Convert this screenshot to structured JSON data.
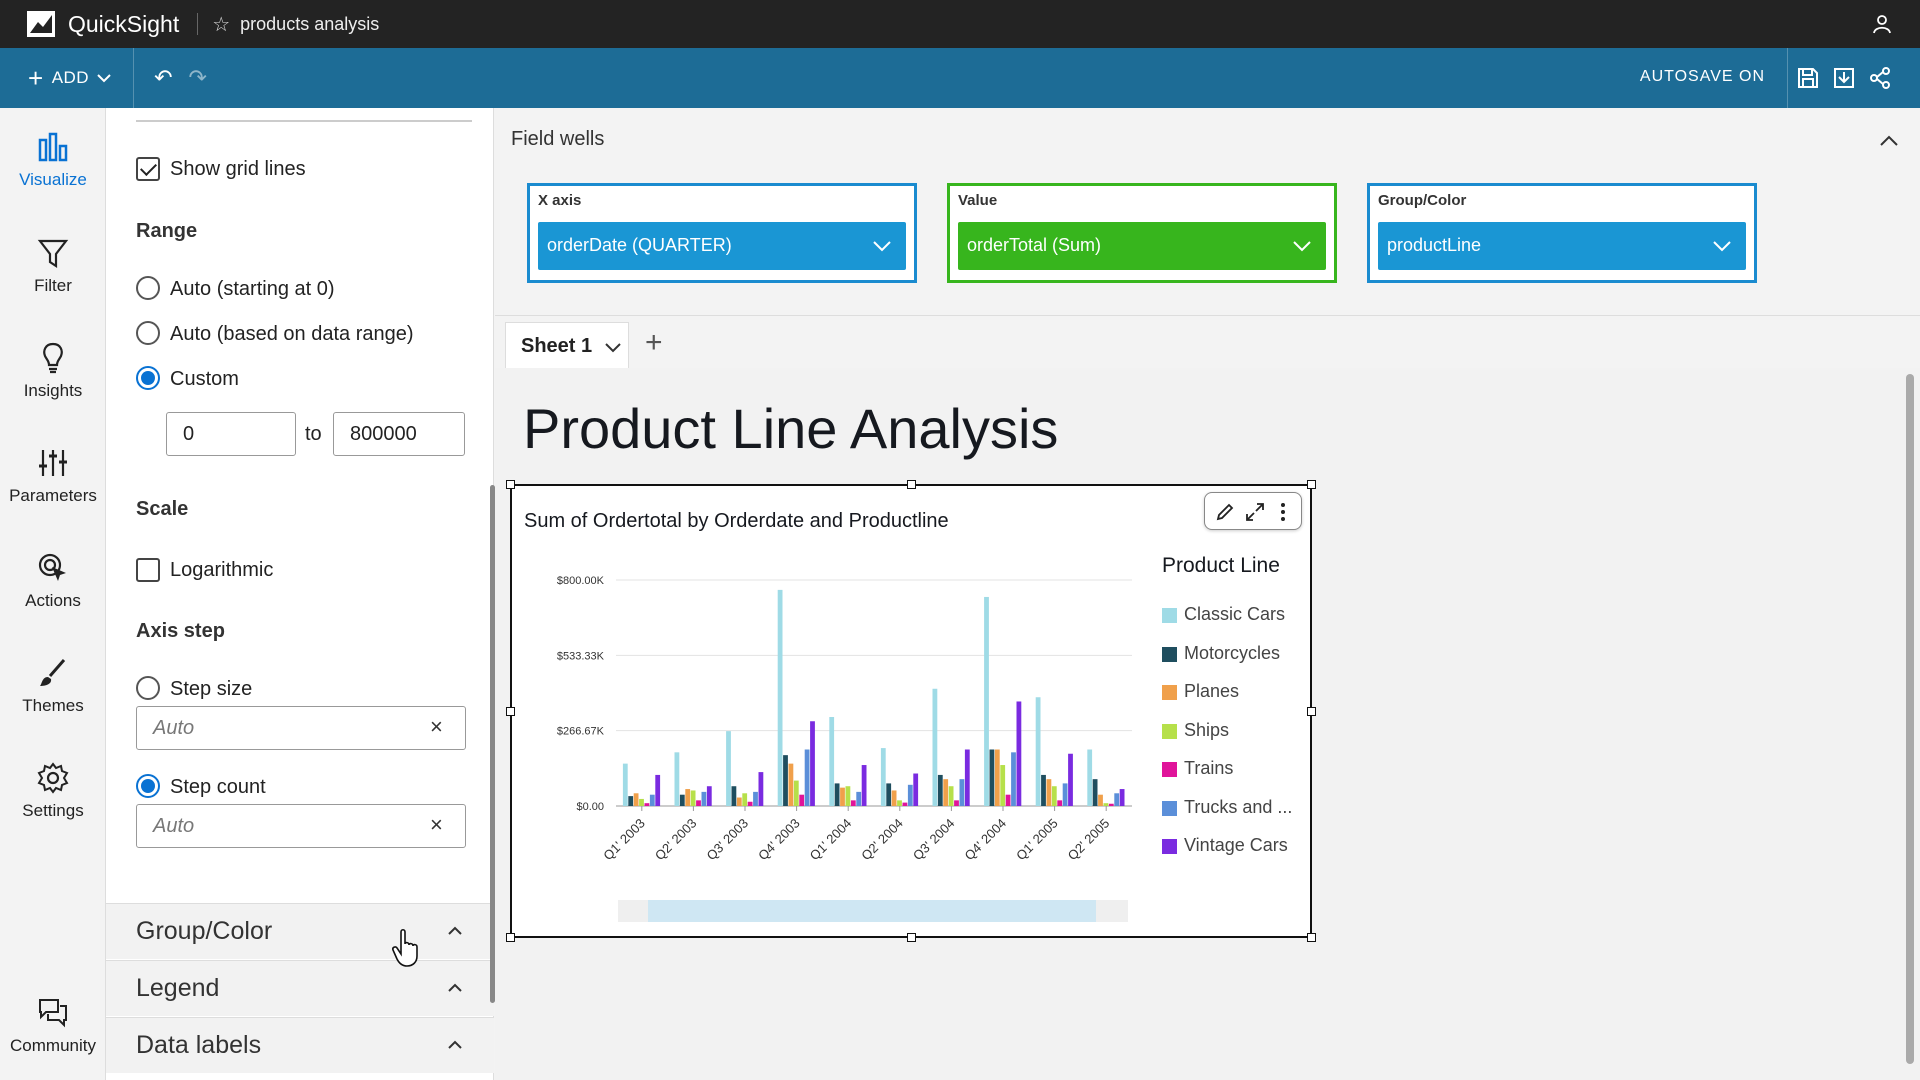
{
  "app": {
    "brand": "QuickSight",
    "doc_title": "products analysis"
  },
  "toolbar": {
    "add_label": "ADD",
    "autosave": "AUTOSAVE ON"
  },
  "rail": [
    {
      "label": "Visualize",
      "icon": "bar-chart-icon"
    },
    {
      "label": "Filter",
      "icon": "filter-icon"
    },
    {
      "label": "Insights",
      "icon": "lightbulb-icon"
    },
    {
      "label": "Parameters",
      "icon": "sliders-icon"
    },
    {
      "label": "Actions",
      "icon": "cursor-click-icon"
    },
    {
      "label": "Themes",
      "icon": "brush-icon"
    },
    {
      "label": "Settings",
      "icon": "gear-icon"
    },
    {
      "label": "Community",
      "icon": "chat-icon"
    }
  ],
  "props": {
    "show_grid_lines": "Show grid lines",
    "range_head": "Range",
    "range_auto0": "Auto (starting at 0)",
    "range_auto_data": "Auto (based on data range)",
    "range_custom": "Custom",
    "range_min": "0",
    "range_to": "to",
    "range_max": "800000",
    "scale_head": "Scale",
    "logarithmic": "Logarithmic",
    "axis_step_head": "Axis step",
    "step_size": "Step size",
    "step_size_value": "Auto",
    "step_count": "Step count",
    "step_count_value": "Auto",
    "sections": [
      "Group/Color",
      "Legend",
      "Data labels"
    ]
  },
  "field_wells": {
    "title": "Field wells",
    "wells": [
      {
        "label": "X axis",
        "field": "orderDate (QUARTER)",
        "color": "#1a96d4"
      },
      {
        "label": "Value",
        "field": "orderTotal (Sum)",
        "color": "#37b51d"
      },
      {
        "label": "Group/Color",
        "field": "productLine",
        "color": "#1a96d4"
      }
    ]
  },
  "sheet": {
    "tab": "Sheet 1",
    "title": "Product Line Analysis"
  },
  "chart_data": {
    "type": "bar",
    "title": "Sum of Ordertotal by Orderdate and Productline",
    "legend_title": "Product Line",
    "ylim": [
      0,
      800000
    ],
    "yticks": [
      "$0.00",
      "$266.67K",
      "$533.33K",
      "$800.00K"
    ],
    "categories": [
      "Q1' 2003",
      "Q2' 2003",
      "Q3' 2003",
      "Q4' 2003",
      "Q1' 2004",
      "Q2' 2004",
      "Q3' 2004",
      "Q4' 2004",
      "Q1' 2005",
      "Q2' 2005"
    ],
    "series": [
      {
        "name": "Classic Cars",
        "color": "#9fdbe6",
        "values": [
          150000,
          190000,
          265000,
          765000,
          315000,
          205000,
          415000,
          740000,
          385000,
          200000
        ]
      },
      {
        "name": "Motorcycles",
        "color": "#1f4e5f",
        "values": [
          35000,
          40000,
          70000,
          180000,
          80000,
          80000,
          110000,
          200000,
          110000,
          95000
        ]
      },
      {
        "name": "Planes",
        "color": "#f0a04b",
        "values": [
          45000,
          60000,
          30000,
          150000,
          65000,
          55000,
          95000,
          200000,
          95000,
          40000
        ]
      },
      {
        "name": "Ships",
        "color": "#b6e04a",
        "values": [
          25000,
          55000,
          45000,
          90000,
          70000,
          20000,
          70000,
          145000,
          70000,
          10000
        ]
      },
      {
        "name": "Trains",
        "color": "#e0149a",
        "values": [
          10000,
          20000,
          15000,
          40000,
          20000,
          12000,
          20000,
          40000,
          20000,
          8000
        ]
      },
      {
        "name": "Trucks and Buses",
        "color": "#5b8fd9",
        "values": [
          40000,
          50000,
          50000,
          200000,
          50000,
          75000,
          95000,
          190000,
          80000,
          45000
        ]
      },
      {
        "name": "Vintage Cars",
        "color": "#7a2be0",
        "values": [
          110000,
          70000,
          120000,
          300000,
          145000,
          115000,
          200000,
          370000,
          185000,
          60000
        ]
      }
    ],
    "legend_labels": [
      "Classic Cars",
      "Motorcycles",
      "Planes",
      "Ships",
      "Trains",
      "Trucks and ...",
      "Vintage Cars"
    ]
  }
}
